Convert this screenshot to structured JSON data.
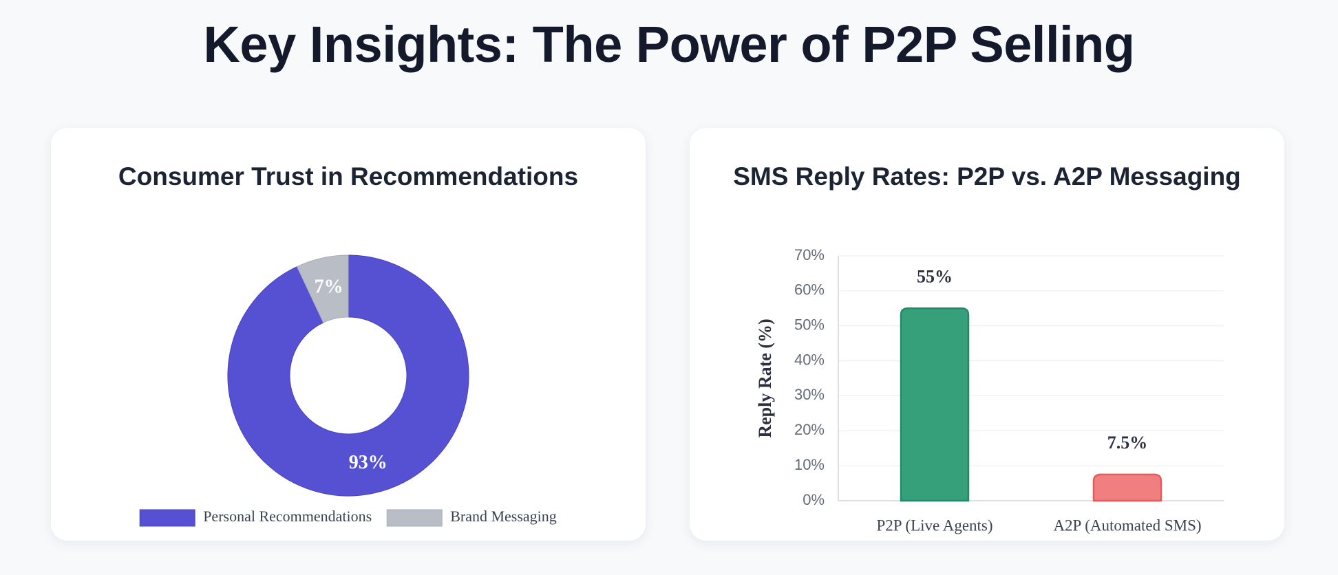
{
  "page": {
    "title": "Key Insights: The Power of P2P Selling"
  },
  "colors": {
    "personal": "#5650d3",
    "brand": "#b8bdc6",
    "p2p": "#35a07a",
    "a2p": "#f17f7f",
    "text_dark": "#1c2434",
    "axis_text": "#636b78"
  },
  "chart_data": [
    {
      "type": "pie",
      "variant": "doughnut",
      "title": "Consumer Trust in Recommendations",
      "categories": [
        "Personal Recommendations",
        "Brand Messaging"
      ],
      "values": [
        93,
        7
      ],
      "data_labels": [
        "93%",
        "7%"
      ],
      "legend": {
        "placement": "bottom",
        "entries": [
          "Personal Recommendations",
          "Brand Messaging"
        ]
      }
    },
    {
      "type": "bar",
      "title": "SMS Reply Rates: P2P vs. A2P Messaging",
      "categories": [
        "P2P (Live Agents)",
        "A2P (Automated SMS)"
      ],
      "values": [
        55,
        7.5
      ],
      "data_labels": [
        "55%",
        "7.5%"
      ],
      "xlabel": "",
      "ylabel": "Reply Rate (%)",
      "ylim": [
        0,
        70
      ],
      "yticks": [
        0,
        10,
        20,
        30,
        40,
        50,
        60,
        70
      ],
      "ytick_labels": [
        "0%",
        "10%",
        "20%",
        "30%",
        "40%",
        "50%",
        "60%",
        "70%"
      ],
      "grid": true
    }
  ]
}
